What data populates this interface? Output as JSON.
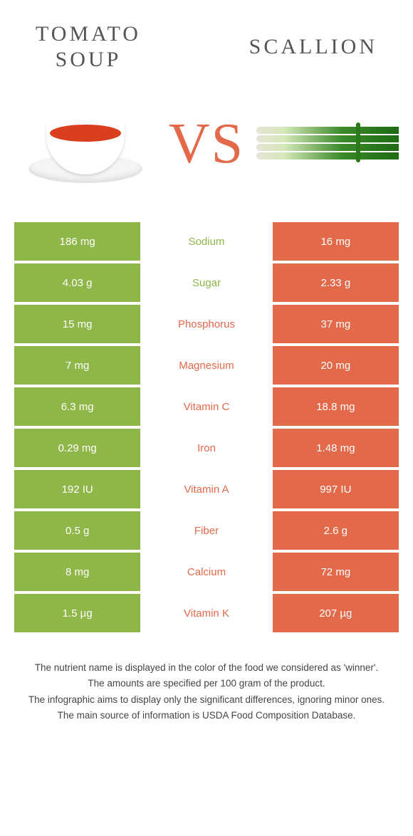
{
  "colors": {
    "left": "#8eb648",
    "right": "#e2694a",
    "text_gray": "#555555",
    "footnote": "#444444"
  },
  "header": {
    "left_title_line1": "TOMATO",
    "left_title_line2": "SOUP",
    "right_title": "SCALLION",
    "vs": "VS"
  },
  "rows": [
    {
      "nutrient": "Sodium",
      "left": "186 mg",
      "right": "16 mg",
      "winner": "left"
    },
    {
      "nutrient": "Sugar",
      "left": "4.03 g",
      "right": "2.33 g",
      "winner": "left"
    },
    {
      "nutrient": "Phosphorus",
      "left": "15 mg",
      "right": "37 mg",
      "winner": "right"
    },
    {
      "nutrient": "Magnesium",
      "left": "7 mg",
      "right": "20 mg",
      "winner": "right"
    },
    {
      "nutrient": "Vitamin C",
      "left": "6.3 mg",
      "right": "18.8 mg",
      "winner": "right"
    },
    {
      "nutrient": "Iron",
      "left": "0.29 mg",
      "right": "1.48 mg",
      "winner": "right"
    },
    {
      "nutrient": "Vitamin A",
      "left": "192 IU",
      "right": "997 IU",
      "winner": "right"
    },
    {
      "nutrient": "Fiber",
      "left": "0.5 g",
      "right": "2.6 g",
      "winner": "right"
    },
    {
      "nutrient": "Calcium",
      "left": "8 mg",
      "right": "72 mg",
      "winner": "right"
    },
    {
      "nutrient": "Vitamin K",
      "left": "1.5 µg",
      "right": "207 µg",
      "winner": "right"
    }
  ],
  "footnotes": [
    "The nutrient name is displayed in the color of the food we considered as 'winner'.",
    "The amounts are specified per 100 gram of the product.",
    "The infographic aims to display only the significant differences, ignoring minor ones.",
    "The main source of information is USDA Food Composition Database."
  ]
}
